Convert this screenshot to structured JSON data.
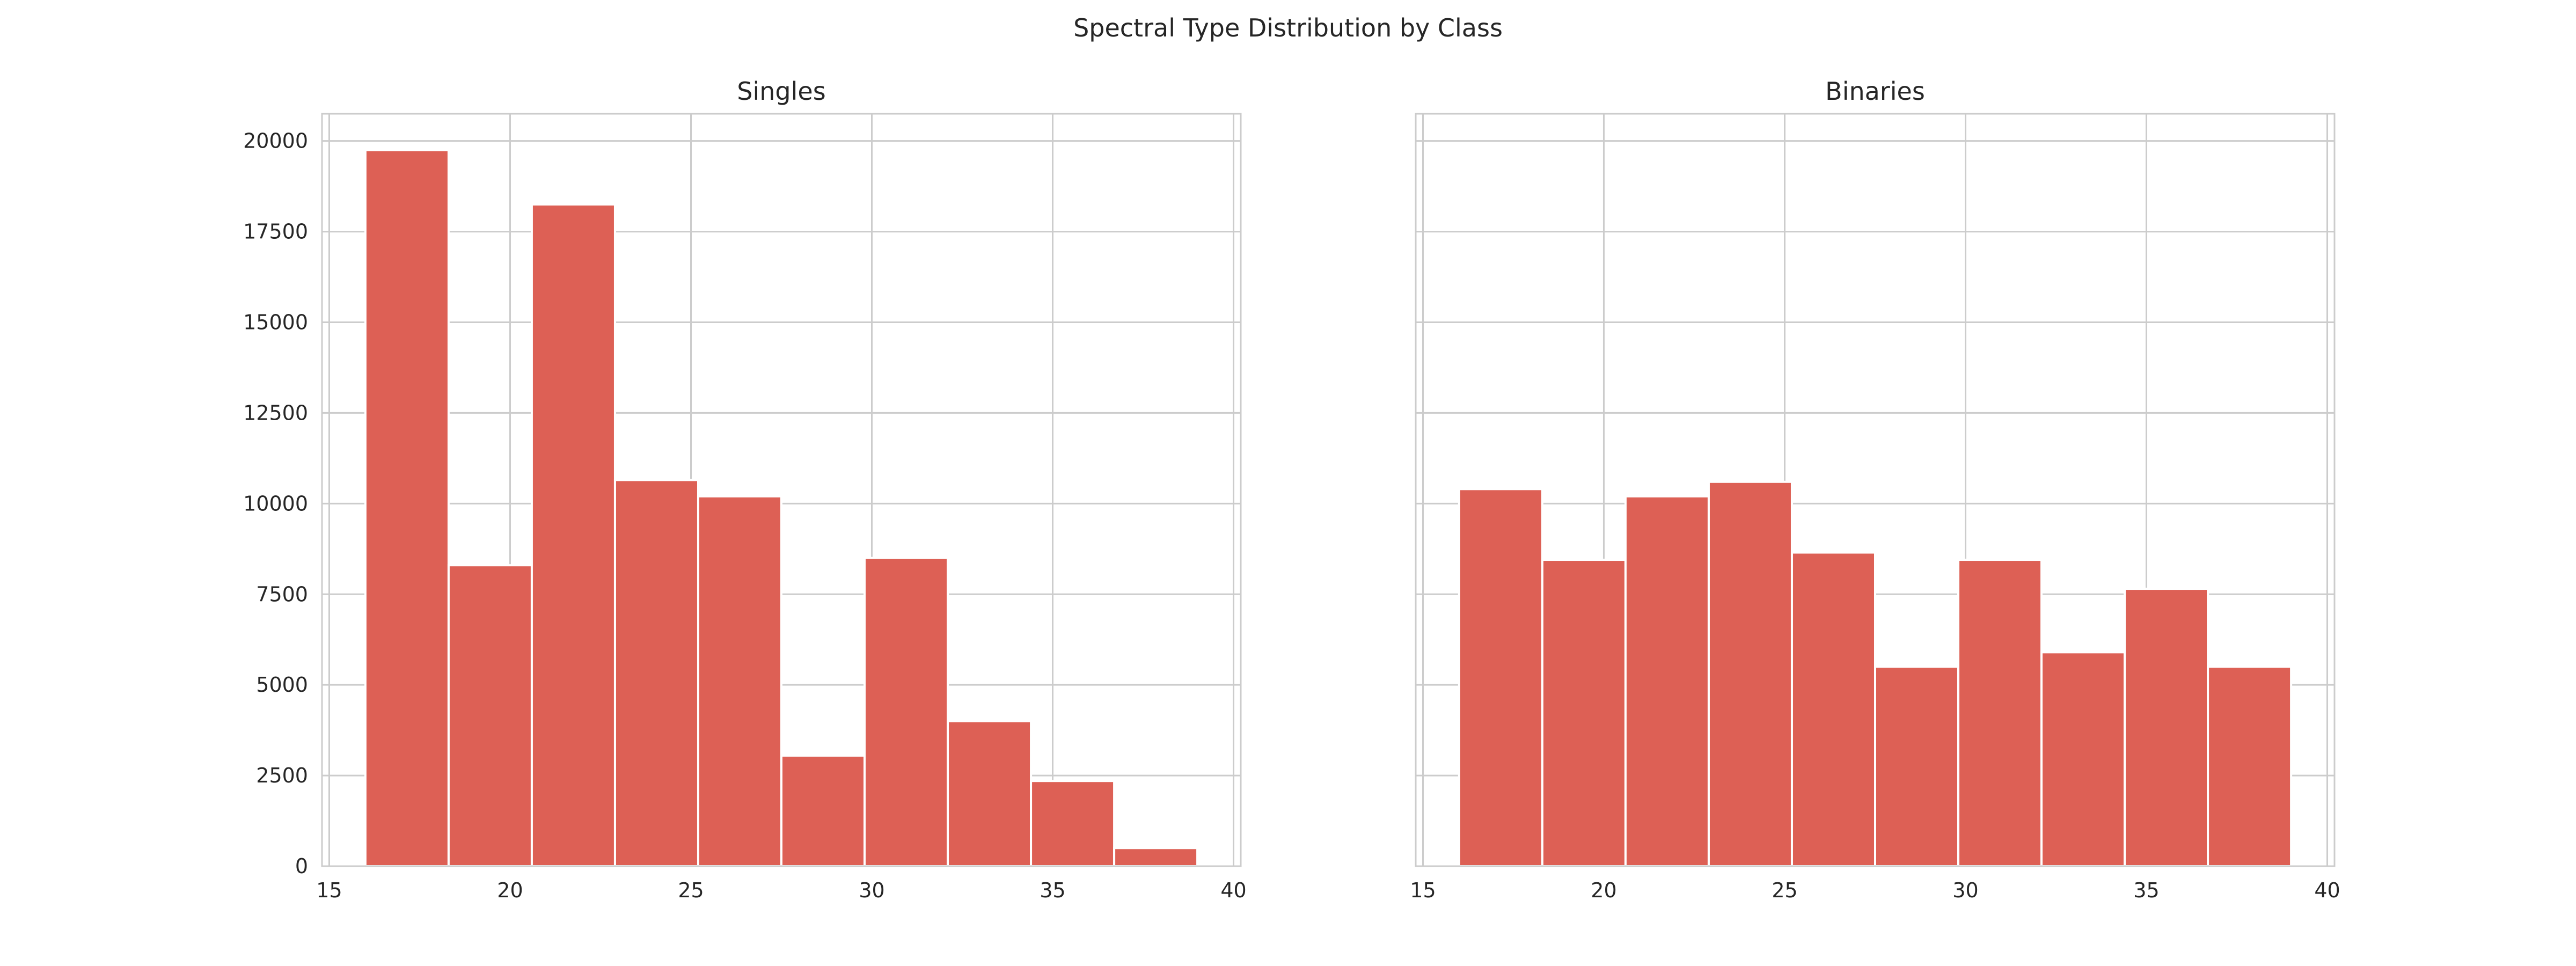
{
  "figure": {
    "title": "Spectral Type Distribution by Class",
    "bar_color": "#dd6055",
    "grid_color": "#cccccc"
  },
  "chart_data": [
    {
      "type": "bar",
      "title": "Singles",
      "xlabel": "",
      "ylabel": "",
      "bin_edges": [
        16,
        18.3,
        20.6,
        22.9,
        25.2,
        27.5,
        29.8,
        32.1,
        34.4,
        36.7,
        39
      ],
      "values": [
        19750,
        8300,
        18250,
        10650,
        10200,
        3050,
        8500,
        4000,
        2350,
        500
      ],
      "xlim": [
        14.8,
        40.2
      ],
      "ylim": [
        0,
        20750
      ],
      "x_ticks": [
        15,
        20,
        25,
        30,
        35,
        40
      ],
      "y_ticks": [
        0,
        2500,
        5000,
        7500,
        10000,
        12500,
        15000,
        17500,
        20000
      ],
      "grid": true
    },
    {
      "type": "bar",
      "title": "Binaries",
      "xlabel": "",
      "ylabel": "",
      "bin_edges": [
        16,
        18.3,
        20.6,
        22.9,
        25.2,
        27.5,
        29.8,
        32.1,
        34.4,
        36.7,
        39
      ],
      "values": [
        10400,
        8450,
        10200,
        10600,
        8650,
        5500,
        8450,
        5900,
        7650,
        5500
      ],
      "xlim": [
        14.8,
        40.2
      ],
      "ylim": [
        0,
        20750
      ],
      "x_ticks": [
        15,
        20,
        25,
        30,
        35,
        40
      ],
      "y_ticks": [
        0,
        2500,
        5000,
        7500,
        10000,
        12500,
        15000,
        17500,
        20000
      ],
      "grid": true
    }
  ]
}
